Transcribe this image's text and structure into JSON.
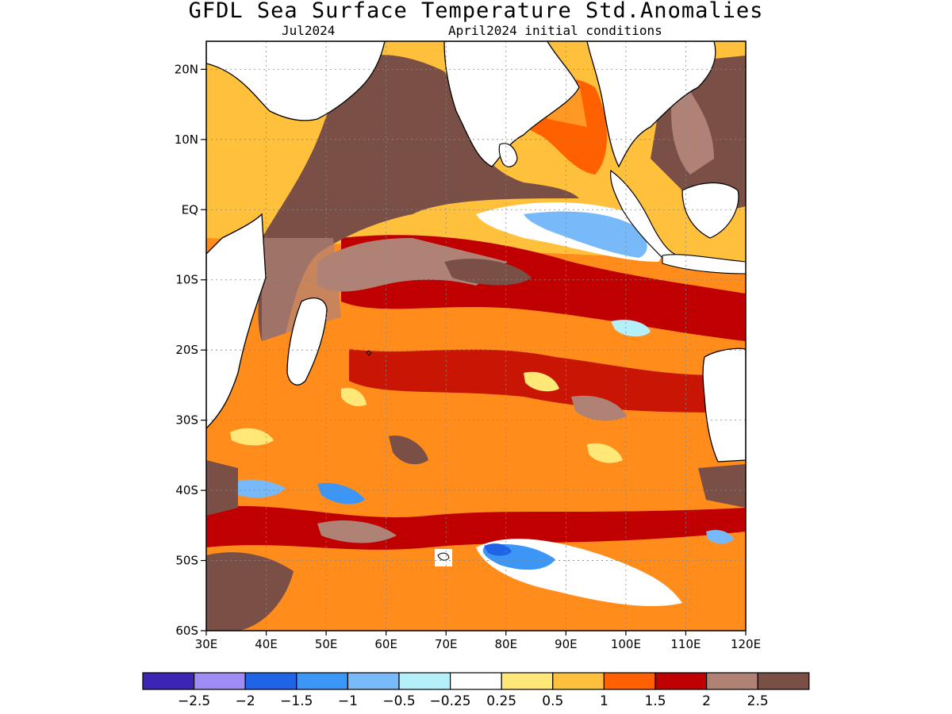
{
  "title": "GFDL Sea Surface Temperature Std.Anomalies",
  "subtitle_left": "Jul2024",
  "subtitle_right": "April2024 initial conditions",
  "map": {
    "lon_range": [
      30,
      120
    ],
    "lat_range": [
      -60,
      24
    ],
    "lat_ticks": [
      "20N",
      "10N",
      "EQ",
      "10S",
      "20S",
      "30S",
      "40S",
      "50S",
      "60S"
    ],
    "lat_values": [
      20,
      10,
      0,
      -10,
      -20,
      -30,
      -40,
      -50,
      -60
    ],
    "lon_ticks": [
      "30E",
      "40E",
      "50E",
      "60E",
      "70E",
      "80E",
      "90E",
      "100E",
      "110E",
      "120E"
    ],
    "lon_values": [
      30,
      40,
      50,
      60,
      70,
      80,
      90,
      100,
      110,
      120
    ],
    "grid": "dotted"
  },
  "colorbar": {
    "colors": [
      "#3c25b4",
      "#a08cf5",
      "#1f64e6",
      "#3c96f5",
      "#78b9fa",
      "#b4f0fa",
      "#ffffff",
      "#ffe878",
      "#ffc03c",
      "#ff6000",
      "#c00000",
      "#b08276",
      "#7a5046"
    ],
    "labels": [
      "−2.5",
      "−2",
      "−1.5",
      "−1",
      "−0.5",
      "−0.25",
      "0.25",
      "0.5",
      "1",
      "1.5",
      "2",
      "2.5"
    ]
  }
}
